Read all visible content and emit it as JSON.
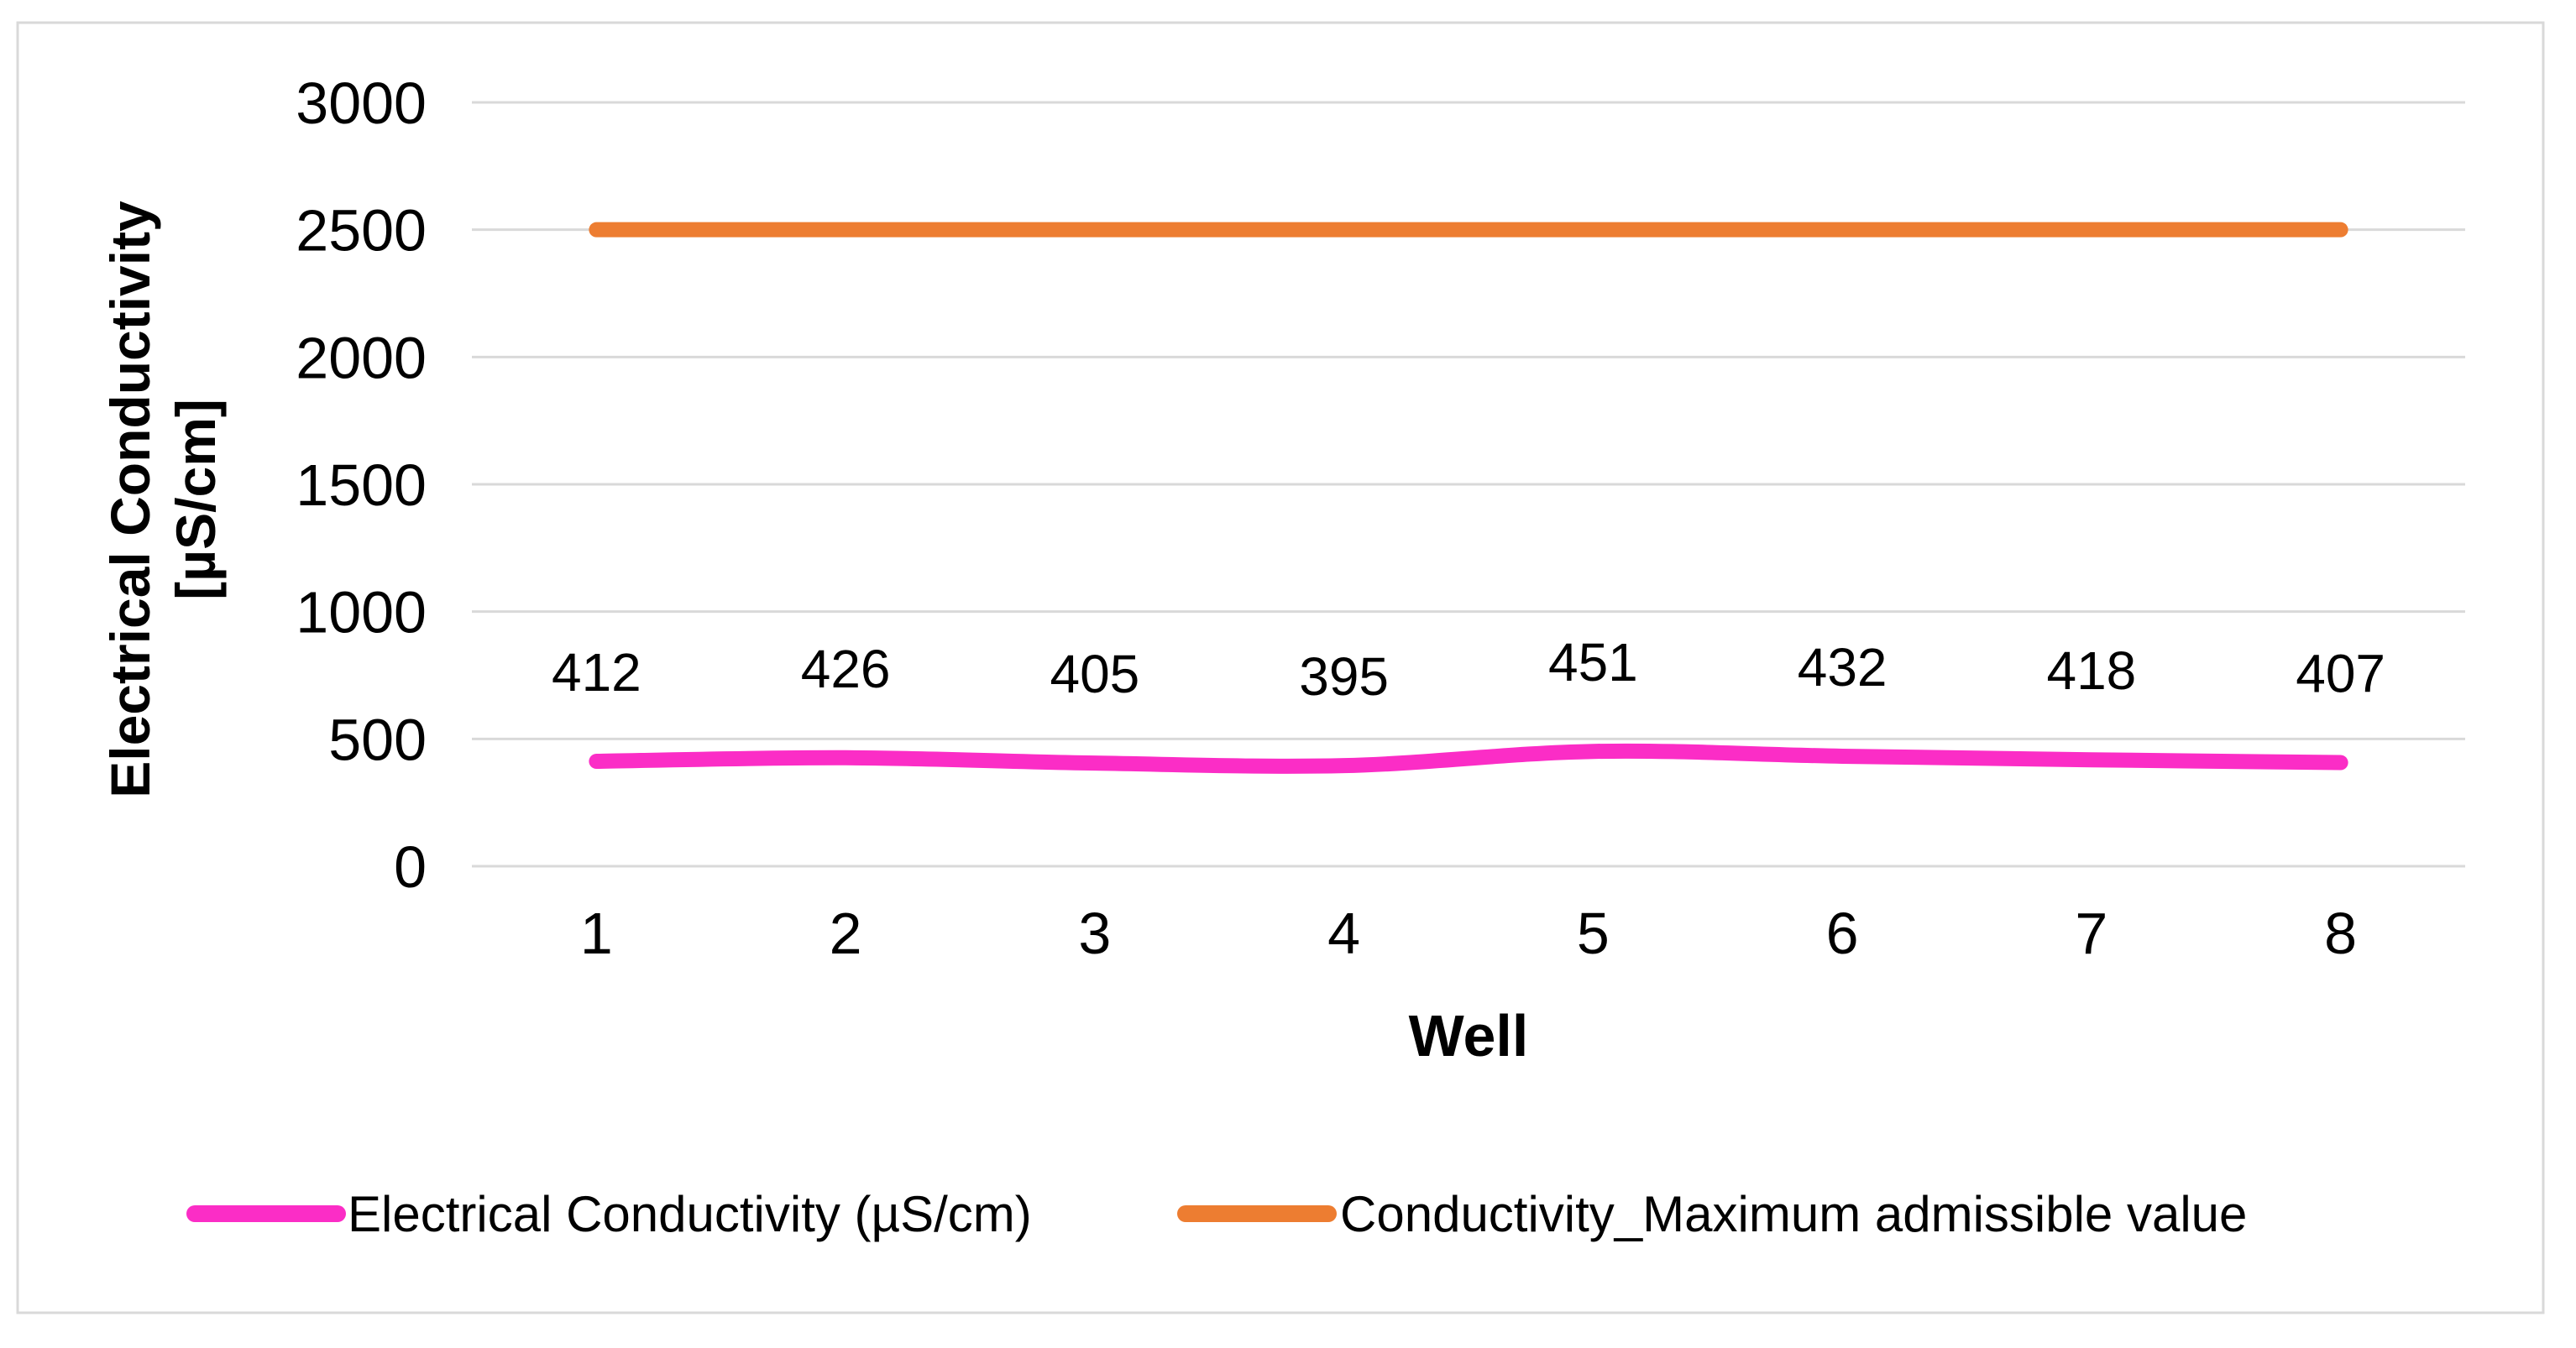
{
  "chart_data": {
    "type": "line",
    "title": "",
    "xlabel": "Well",
    "ylabel": "Electrical Conductivity [µS/cm]",
    "ylabel_lines": [
      "Electrical Conductivity",
      "[µS/cm]"
    ],
    "categories": [
      "1",
      "2",
      "3",
      "4",
      "5",
      "6",
      "7",
      "8"
    ],
    "ylim": [
      0,
      3000
    ],
    "yticks": [
      0,
      500,
      1000,
      1500,
      2000,
      2500,
      3000
    ],
    "grid": true,
    "legend_position": "bottom",
    "series": [
      {
        "name": "Electrical Conductivity (µS/cm)",
        "values": [
          412,
          426,
          405,
          395,
          451,
          432,
          418,
          407
        ],
        "color": "#FB2DC6",
        "smooth": true,
        "show_data_labels": true
      },
      {
        "name": "Conductivity_Maximum admissible value",
        "values": [
          2500,
          2500,
          2500,
          2500,
          2500,
          2500,
          2500,
          2500
        ],
        "color": "#ED7D31",
        "smooth": false,
        "show_data_labels": false
      }
    ],
    "colors": {
      "gridline": "#D9D9D9",
      "border": "#D9D9D9",
      "text": "#000000",
      "background": "#FFFFFF"
    }
  }
}
